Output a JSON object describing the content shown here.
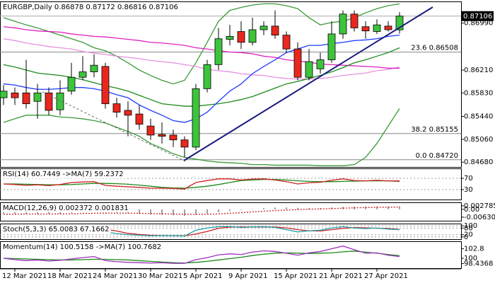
{
  "chart_data": [
    {
      "type": "candlestick",
      "title": "EURGBP,Daily 0.86878 0.87172 0.86816 0.87106",
      "categories": [
        null,
        "12 Mar 2021",
        null,
        null,
        null,
        "18 Mar 2021",
        null,
        null,
        null,
        "24 Mar 2021",
        null,
        null,
        null,
        "30 Mar 2021",
        null,
        null,
        null,
        "5 Apr 2021",
        null,
        null,
        null,
        "9 Apr 2021",
        null,
        null,
        null,
        "15 Apr 2021",
        null,
        null,
        null,
        "21 Apr 2021",
        null,
        null,
        null,
        "27 Apr 2021",
        null,
        null
      ],
      "open": [
        0.8575,
        0.8583,
        0.8583,
        0.8569,
        0.8583,
        0.8555,
        0.8586,
        0.8609,
        0.8618,
        0.8627,
        0.8565,
        0.8554,
        0.8548,
        0.8528,
        0.8514,
        0.8513,
        0.8505,
        0.8493,
        0.859,
        0.863,
        0.8672,
        0.8685,
        0.8667,
        0.8688,
        0.8694,
        0.8679,
        0.8656,
        0.8609,
        0.8623,
        0.8638,
        0.8681,
        0.8714,
        0.8693,
        0.8685,
        0.8694,
        0.86878
      ],
      "high": [
        0.8596,
        0.8592,
        0.8638,
        0.8598,
        0.8592,
        0.8604,
        0.8633,
        0.8644,
        0.8647,
        0.8633,
        0.8575,
        0.8569,
        0.8563,
        0.854,
        0.8534,
        0.8522,
        0.8511,
        0.8598,
        0.8638,
        0.8691,
        0.8696,
        0.8702,
        0.8708,
        0.8702,
        0.872,
        0.8685,
        0.8667,
        0.8656,
        0.865,
        0.8702,
        0.872,
        0.872,
        0.8702,
        0.8705,
        0.8702,
        0.87172
      ],
      "low": [
        0.8563,
        0.8563,
        0.8557,
        0.854,
        0.8546,
        0.8546,
        0.858,
        0.8604,
        0.8609,
        0.8557,
        0.8542,
        0.8511,
        0.8522,
        0.8505,
        0.8499,
        0.8493,
        0.8476,
        0.8488,
        0.8584,
        0.8621,
        0.8662,
        0.8656,
        0.8662,
        0.8679,
        0.8673,
        0.865,
        0.8604,
        0.8604,
        0.8615,
        0.8633,
        0.8673,
        0.8685,
        0.8673,
        0.8681,
        0.8685,
        0.86816
      ],
      "close": [
        0.8586,
        0.8575,
        0.8565,
        0.8583,
        0.8554,
        0.8583,
        0.8609,
        0.8618,
        0.8629,
        0.8565,
        0.8551,
        0.8546,
        0.8531,
        0.8513,
        0.8511,
        0.8505,
        0.8493,
        0.859,
        0.863,
        0.8673,
        0.8677,
        0.8667,
        0.8688,
        0.8694,
        0.8679,
        0.8656,
        0.8609,
        0.8635,
        0.8638,
        0.8681,
        0.8714,
        0.8691,
        0.8686,
        0.8696,
        0.8688,
        0.87106
      ],
      "up_color": "#3cc43c",
      "down_color": "#e8281e",
      "series": [
        {
          "color": "#3a9a3a",
          "values": [
            0.8708,
            0.8702,
            0.8696,
            0.8691,
            0.8685,
            0.8679,
            0.8673,
            0.8667,
            0.8658,
            0.8653,
            0.8644,
            0.8633,
            0.8621,
            0.8612,
            0.8604,
            0.8598,
            0.8604,
            0.8633,
            0.8667,
            0.8702,
            0.872,
            0.8725,
            0.8729,
            0.8731,
            0.8731,
            0.8728,
            0.8723,
            0.8708,
            0.8696,
            0.87,
            0.8702,
            0.8708,
            0.8716,
            0.8723,
            0.8728,
            0.8731
          ]
        },
        {
          "color": "#3a9a3a",
          "values": [
            0.8534,
            0.854,
            0.8546,
            0.8546,
            0.8546,
            0.8543,
            0.8542,
            0.854,
            0.8537,
            0.8533,
            0.8526,
            0.8519,
            0.8511,
            0.8499,
            0.8491,
            0.8482,
            0.8476,
            0.8473,
            0.847,
            0.8468,
            0.8467,
            0.8466,
            0.8464,
            0.8464,
            0.8463,
            0.8463,
            0.8463,
            0.8463,
            0.8462,
            0.8462,
            0.8462,
            0.8464,
            0.8476,
            0.8499,
            0.8528,
            0.8557
          ]
        },
        {
          "color": "#e890e0",
          "values": [
            0.8673,
            0.867,
            0.8666,
            0.8663,
            0.866,
            0.8658,
            0.8656,
            0.8652,
            0.8649,
            0.8647,
            0.8644,
            0.8642,
            0.864,
            0.8637,
            0.8635,
            0.8633,
            0.863,
            0.8627,
            0.8622,
            0.862,
            0.8618,
            0.8615,
            0.8613,
            0.8612,
            0.8609,
            0.8607,
            0.8606,
            0.8606,
            0.8607,
            0.8609,
            0.8612,
            0.8614,
            0.8616,
            0.862,
            0.8622,
            0.8626
          ]
        },
        {
          "color": "#e020c0",
          "values": [
            0.8693,
            0.8691,
            0.8688,
            0.8686,
            0.8685,
            0.8684,
            0.8681,
            0.8679,
            0.8677,
            0.8676,
            0.8674,
            0.8672,
            0.867,
            0.8667,
            0.8666,
            0.8664,
            0.8662,
            0.8658,
            0.8656,
            0.8653,
            0.8651,
            0.865,
            0.8648,
            0.8644,
            0.8642,
            0.8638,
            0.8636,
            0.8634,
            0.8631,
            0.863,
            0.8629,
            0.8628,
            0.8627,
            0.8626,
            0.8624,
            0.8624
          ]
        },
        {
          "color": "#1a8a1a",
          "values": [
            0.863,
            0.8626,
            0.8621,
            0.8616,
            0.8614,
            0.8612,
            0.8609,
            0.8605,
            0.86,
            0.8595,
            0.8591,
            0.8586,
            0.8579,
            0.8572,
            0.8565,
            0.8563,
            0.8561,
            0.8561,
            0.8563,
            0.8565,
            0.8568,
            0.8572,
            0.8577,
            0.8584,
            0.8591,
            0.8598,
            0.8602,
            0.8607,
            0.8612,
            0.8618,
            0.8625,
            0.8633,
            0.8638,
            0.8644,
            0.865,
            0.8658
          ]
        },
        {
          "color": "#1e3cff",
          "values": [
            0.8598,
            0.8596,
            0.8592,
            0.8589,
            0.8589,
            0.859,
            0.8592,
            0.8592,
            0.859,
            0.8586,
            0.858,
            0.8575,
            0.8563,
            0.8554,
            0.8546,
            0.8537,
            0.8534,
            0.854,
            0.8551,
            0.8569,
            0.8586,
            0.8598,
            0.8615,
            0.8627,
            0.8638,
            0.865,
            0.8656,
            0.8662,
            0.8662,
            0.8665,
            0.8667,
            0.867,
            0.8671,
            0.8673,
            0.8677,
            0.8679
          ]
        }
      ],
      "annotations": [
        {
          "text": "23.6 0.86508",
          "value": 0.86508
        },
        {
          "text": "38.2 0.85155",
          "value": 0.85155
        },
        {
          "text": "0.0 0.84720",
          "value": 0.8472
        }
      ],
      "last_price": 0.87106,
      "ylim": [
        0.846,
        0.8735
      ],
      "yticks": [
        {
          "value": 0.8699,
          "label": "0.86990"
        },
        {
          "value": 0.8621,
          "label": "0.86210"
        },
        {
          "value": 0.8583,
          "label": "0.85830"
        },
        {
          "value": 0.8544,
          "label": "0.85440"
        },
        {
          "value": 0.8506,
          "label": "0.85060"
        },
        {
          "value": 0.8468,
          "label": "0.84680"
        }
      ]
    },
    {
      "type": "line",
      "title": "RSI(14) 60.7449 ->MA(7) 59.2372",
      "ylim": [
        -5,
        105
      ],
      "yticks": [
        70,
        30
      ],
      "levels": true,
      "series": [
        {
          "color": "#1a8a1a",
          "values": [
            50,
            50,
            49,
            48,
            47,
            47,
            48,
            50,
            52,
            52,
            51,
            49,
            46,
            42,
            38,
            36,
            35,
            38,
            42,
            48,
            55,
            62,
            64,
            66,
            66,
            64,
            61,
            59,
            58,
            58,
            59,
            60,
            61,
            61,
            61,
            59.2372
          ]
        },
        {
          "color": "#cc2020",
          "values": [
            50,
            48,
            45,
            47,
            44,
            48,
            55,
            57,
            58,
            45,
            42,
            40,
            38,
            35,
            35,
            34,
            32,
            55,
            62,
            68,
            68,
            64,
            67,
            68,
            64,
            58,
            50,
            54,
            56,
            63,
            68,
            62,
            61,
            63,
            61,
            60.7449
          ]
        }
      ]
    },
    {
      "type": "bar",
      "title": "MACD(12,26,9) 0.002372 0.001831",
      "ylim": [
        -0.0092,
        0.0056
      ],
      "yticks": [
        0.002785,
        {
          "value": 0,
          "label": "0.00"
        },
        -0.006304
      ],
      "color": "#a0a0a0",
      "values": [
        -0.0035,
        -0.0036,
        -0.0037,
        -0.0036,
        -0.0037,
        -0.0035,
        -0.003,
        -0.0026,
        -0.0022,
        -0.0025,
        -0.0029,
        -0.0033,
        -0.0037,
        -0.0042,
        -0.0045,
        -0.0048,
        -0.0052,
        -0.0045,
        -0.0036,
        -0.0024,
        -0.0013,
        -0.0005,
        0.0003,
        0.001,
        0.0014,
        0.0015,
        0.0012,
        0.0011,
        0.0011,
        0.0015,
        0.002,
        0.0022,
        0.0022,
        0.0023,
        0.0023,
        0.002372
      ],
      "series": [
        {
          "color": "#cc2020",
          "dashed": true,
          "values": [
            -0.004,
            -0.0039,
            -0.0038,
            -0.0038,
            -0.0038,
            -0.0037,
            -0.0036,
            -0.0034,
            -0.0032,
            -0.0031,
            -0.0031,
            -0.0031,
            -0.0032,
            -0.0034,
            -0.0036,
            -0.0038,
            -0.004,
            -0.0041,
            -0.004,
            -0.0037,
            -0.0032,
            -0.0027,
            -0.0021,
            -0.0015,
            -0.001,
            -0.0006,
            -0.0002,
            0.0001,
            0.0003,
            0.0006,
            0.0009,
            0.0012,
            0.0014,
            0.0016,
            0.0017,
            0.001831
          ]
        }
      ]
    },
    {
      "type": "line",
      "title": "Stoch(5,3,3) 65.0083 67.1662",
      "ylim": [
        -20,
        120
      ],
      "yticks": [
        100,
        80,
        20,
        0
      ],
      "levels": true,
      "series": [
        {
          "color": "#cc2020",
          "values": [
            55,
            55,
            52,
            48,
            45,
            48,
            57,
            70,
            80,
            70,
            53,
            32,
            22,
            15,
            12,
            11,
            10,
            26,
            49,
            77,
            88,
            90,
            89,
            89,
            89,
            81,
            65,
            55,
            53,
            65,
            77,
            84,
            82,
            78,
            75,
            67.1662
          ]
        },
        {
          "color": "#20a0a8",
          "values": [
            60,
            50,
            45,
            50,
            40,
            55,
            75,
            80,
            85,
            45,
            30,
            20,
            15,
            10,
            12,
            10,
            8,
            60,
            80,
            92,
            93,
            85,
            90,
            92,
            85,
            65,
            45,
            55,
            60,
            80,
            92,
            80,
            75,
            80,
            70,
            65.0083
          ]
        }
      ]
    },
    {
      "type": "line",
      "title": "Momentum(14) 100.5158 ->MA(7) 100.7682",
      "ylim": [
        97.1,
        105
      ],
      "yticks": [
        102.8,
        100,
        98.4368
      ],
      "levels": false,
      "series": [
        {
          "color": "#1a8a1a",
          "values": [
            100,
            99.9,
            99.8,
            99.7,
            99.6,
            99.5,
            99.5,
            99.6,
            99.7,
            99.7,
            99.6,
            99.5,
            99.3,
            99.1,
            98.9,
            98.7,
            98.6,
            98.8,
            99.1,
            99.5,
            99.9,
            100.3,
            100.8,
            101.2,
            101.5,
            101.6,
            101.5,
            101.4,
            101.5,
            101.6,
            101.9,
            102.1,
            101.8,
            101.5,
            101.1,
            100.7682
          ]
        },
        {
          "color": "#a030c0",
          "values": [
            100,
            99.6,
            99.3,
            99.5,
            99.2,
            99.4,
            99.8,
            100.2,
            100.5,
            99.3,
            99,
            98.8,
            98.7,
            98.6,
            98.7,
            98.5,
            98.5,
            99.6,
            100.2,
            101,
            101.3,
            101.1,
            101.8,
            102.2,
            102,
            101.5,
            100.9,
            101.6,
            102,
            102.8,
            103.6,
            102.5,
            101.5,
            101.6,
            100.9,
            100.5158
          ]
        }
      ]
    }
  ]
}
